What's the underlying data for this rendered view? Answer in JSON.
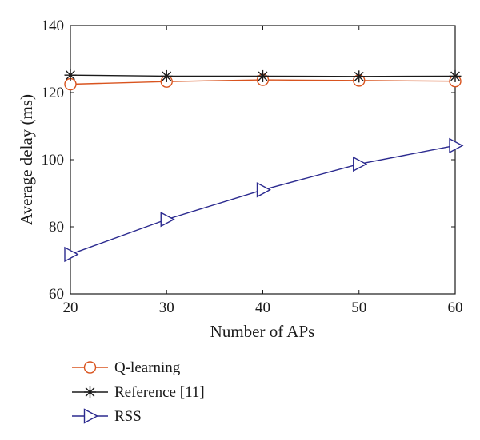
{
  "chart_data": {
    "type": "line",
    "x": [
      20,
      30,
      40,
      50,
      60
    ],
    "xticks": [
      "20",
      "30",
      "40",
      "50",
      "60"
    ],
    "yticks": [
      "60",
      "80",
      "100",
      "120",
      "140"
    ],
    "xlim": [
      20,
      60
    ],
    "ylim": [
      60,
      140
    ],
    "xlabel": "Number of APs",
    "ylabel": "Average delay (ms)",
    "grid": false,
    "legend_position": "below-left",
    "series": [
      {
        "name": "Q-learning",
        "values": [
          122.5,
          123.3,
          123.8,
          123.6,
          123.4
        ],
        "color": "#d9541f",
        "marker": "circle"
      },
      {
        "name": "Reference [11]",
        "values": [
          125.2,
          124.9,
          124.9,
          124.8,
          124.9
        ],
        "color": "#1a1a1a",
        "marker": "star"
      },
      {
        "name": "RSS",
        "values": [
          71.8,
          82.2,
          91.0,
          98.7,
          104.2
        ],
        "color": "#2b2a8f",
        "marker": "triangle-right"
      }
    ]
  }
}
